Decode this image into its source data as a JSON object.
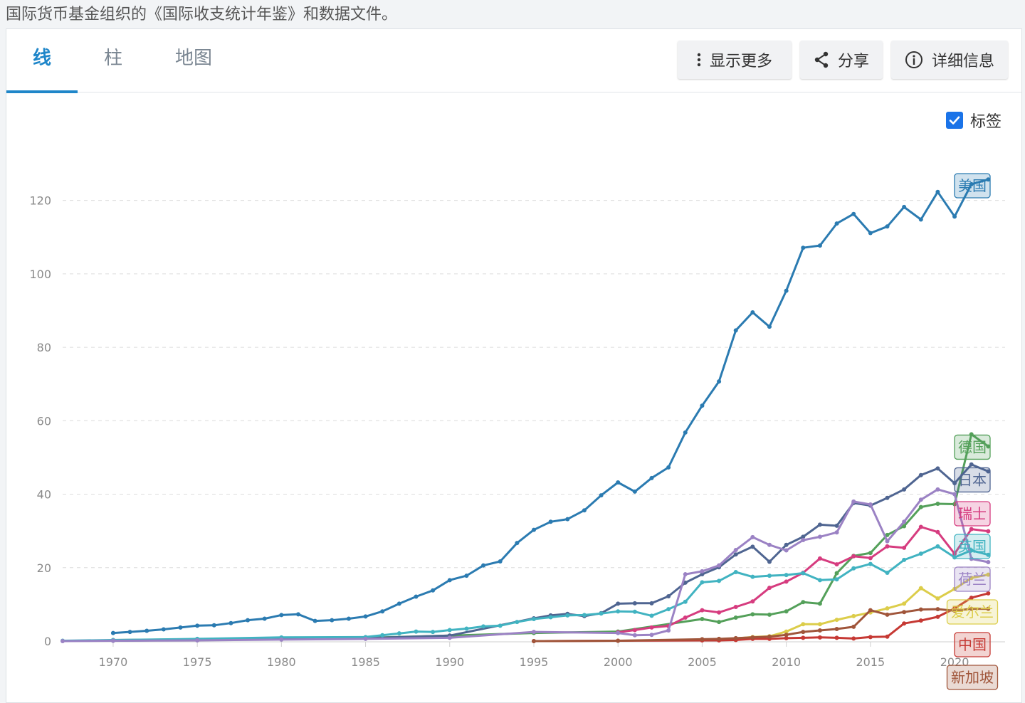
{
  "source_text": "国际货币基金组织的《国际收支统计年鉴》和数据文件。",
  "tabs": [
    {
      "label": "线",
      "active": true
    },
    {
      "label": "柱",
      "active": false
    },
    {
      "label": "地图",
      "active": false
    }
  ],
  "toolbar": {
    "more_label": "显示更多",
    "share_label": "分享",
    "details_label": "详细信息"
  },
  "labels_toggle": {
    "label": "标签",
    "checked": true
  },
  "chart_data": {
    "type": "line",
    "title": "",
    "xlabel": "",
    "ylabel": "",
    "xlim": [
      1967,
      2023
    ],
    "ylim": [
      0,
      130
    ],
    "x_ticks": [
      1970,
      1975,
      1980,
      1985,
      1990,
      1995,
      2000,
      2005,
      2010,
      2015,
      2020
    ],
    "y_ticks": [
      0,
      20,
      40,
      60,
      80,
      100,
      120
    ],
    "grid": true,
    "legend": "inline-right",
    "series": [
      {
        "name": "美国",
        "color": "#2b7bb1",
        "x": [
          1970,
          1971,
          1972,
          1973,
          1974,
          1975,
          1976,
          1977,
          1978,
          1979,
          1980,
          1981,
          1982,
          1983,
          1984,
          1985,
          1986,
          1987,
          1988,
          1989,
          1990,
          1991,
          1992,
          1993,
          1994,
          1995,
          1996,
          1997,
          1998,
          1999,
          2000,
          2001,
          2002,
          2003,
          2004,
          2005,
          2006,
          2007,
          2008,
          2009,
          2010,
          2011,
          2012,
          2013,
          2014,
          2015,
          2016,
          2017,
          2018,
          2019,
          2020,
          2021,
          2022
        ],
        "y": [
          2.2,
          2.5,
          2.8,
          3.2,
          3.7,
          4.2,
          4.3,
          4.9,
          5.7,
          6.1,
          7.1,
          7.3,
          5.5,
          5.7,
          6.1,
          6.7,
          8.1,
          10.2,
          12.1,
          13.8,
          16.6,
          17.8,
          20.6,
          21.7,
          26.7,
          30.3,
          32.5,
          33.2,
          35.6,
          39.7,
          43.2,
          40.7,
          44.4,
          47.3,
          56.8,
          64.1,
          70.7,
          84.6,
          89.5,
          85.6,
          95.4,
          107.1,
          107.7,
          113.7,
          116.3,
          111.1,
          112.9,
          118.2,
          114.8,
          122.3,
          115.6,
          124.4,
          125.7
        ]
      },
      {
        "name": "德国",
        "color": "#54a05a",
        "x": [
          1970,
          1975,
          1980,
          1985,
          1990,
          1995,
          2000,
          2005,
          2006,
          2007,
          2008,
          2009,
          2010,
          2011,
          2012,
          2013,
          2014,
          2015,
          2016,
          2017,
          2018,
          2019,
          2020,
          2021,
          2022
        ],
        "y": [
          0.3,
          0.5,
          0.8,
          0.9,
          1.5,
          2.2,
          2.6,
          6.0,
          5.2,
          6.4,
          7.3,
          7.2,
          8.1,
          10.6,
          10.2,
          18.5,
          23.2,
          24.0,
          28.9,
          31.3,
          36.5,
          37.4,
          37.3,
          56.3,
          53.0
        ]
      },
      {
        "name": "日本",
        "color": "#4f6591",
        "x": [
          1970,
          1975,
          1980,
          1985,
          1990,
          1995,
          1996,
          1997,
          1998,
          1999,
          2000,
          2001,
          2002,
          2003,
          2004,
          2005,
          2006,
          2007,
          2008,
          2009,
          2010,
          2011,
          2012,
          2013,
          2014,
          2015,
          2016,
          2017,
          2018,
          2019,
          2020,
          2021,
          2022
        ],
        "y": [
          0.1,
          0.3,
          0.6,
          0.8,
          1.5,
          6.2,
          7.0,
          7.4,
          6.8,
          7.6,
          10.2,
          10.3,
          10.3,
          12.2,
          15.9,
          18.2,
          20.1,
          23.6,
          25.7,
          21.6,
          26.2,
          28.4,
          31.7,
          31.4,
          37.6,
          36.9,
          39.0,
          41.3,
          45.2,
          47.0,
          43.0,
          48.1,
          46.2
        ]
      },
      {
        "name": "瑞士",
        "color": "#d63c7f",
        "x": [
          2000,
          2001,
          2002,
          2003,
          2004,
          2005,
          2006,
          2007,
          2008,
          2009,
          2010,
          2011,
          2012,
          2013,
          2014,
          2015,
          2016,
          2017,
          2018,
          2019,
          2020,
          2021,
          2022
        ],
        "y": [
          2.4,
          3.0,
          3.7,
          4.1,
          6.4,
          8.4,
          7.8,
          9.3,
          10.8,
          14.5,
          16.2,
          18.6,
          22.5,
          20.9,
          23.1,
          22.6,
          25.8,
          25.4,
          31.1,
          29.7,
          23.8,
          30.5,
          29.9
        ]
      },
      {
        "name": "英国",
        "color": "#41b3c1",
        "x": [
          1967,
          1970,
          1975,
          1980,
          1985,
          1986,
          1987,
          1988,
          1989,
          1990,
          1991,
          1992,
          1993,
          1994,
          1995,
          1996,
          1997,
          1998,
          1999,
          2000,
          2001,
          2002,
          2003,
          2004,
          2005,
          2006,
          2007,
          2008,
          2009,
          2010,
          2011,
          2012,
          2013,
          2014,
          2015,
          2016,
          2017,
          2018,
          2019,
          2020,
          2021,
          2022
        ],
        "y": [
          0.1,
          0.3,
          0.6,
          1.0,
          1.1,
          1.6,
          2.1,
          2.6,
          2.5,
          3.0,
          3.4,
          4.0,
          4.2,
          5.2,
          6.0,
          6.5,
          7.0,
          7.1,
          7.5,
          8.1,
          8.0,
          6.9,
          8.7,
          10.7,
          16.0,
          16.4,
          18.8,
          17.5,
          17.8,
          18.0,
          18.5,
          16.6,
          16.8,
          19.8,
          21.0,
          18.6,
          22.1,
          23.8,
          25.8,
          22.8,
          24.7,
          23.5
        ]
      },
      {
        "name": "荷兰",
        "color": "#9b82c4",
        "x": [
          1967,
          1970,
          1975,
          1980,
          1985,
          1990,
          1995,
          2000,
          2001,
          2002,
          2003,
          2004,
          2005,
          2006,
          2007,
          2008,
          2009,
          2010,
          2011,
          2012,
          2013,
          2014,
          2015,
          2016,
          2017,
          2018,
          2019,
          2020,
          2021,
          2022
        ],
        "y": [
          0.0,
          0.1,
          0.2,
          0.4,
          0.6,
          0.9,
          2.5,
          2.2,
          1.6,
          1.7,
          2.9,
          18.2,
          19.0,
          20.6,
          24.8,
          28.3,
          26.2,
          24.7,
          27.5,
          28.4,
          29.6,
          38.0,
          37.2,
          27.2,
          32.5,
          38.5,
          41.3,
          40.0,
          22.4,
          21.5
        ]
      },
      {
        "name": "爱尔兰",
        "color": "#dccd4a",
        "x": [
          2005,
          2006,
          2007,
          2008,
          2009,
          2010,
          2011,
          2012,
          2013,
          2014,
          2015,
          2016,
          2017,
          2018,
          2019,
          2020,
          2021,
          2022
        ],
        "y": [
          0.4,
          0.5,
          0.7,
          1.1,
          1.3,
          2.6,
          4.6,
          4.6,
          5.8,
          6.8,
          7.8,
          8.9,
          10.2,
          14.4,
          11.6,
          14.2,
          17.2,
          18.1
        ]
      },
      {
        "name": "中国",
        "color": "#c63934",
        "x": [
          1995,
          2000,
          2005,
          2006,
          2007,
          2008,
          2009,
          2010,
          2011,
          2012,
          2013,
          2014,
          2015,
          2016,
          2017,
          2018,
          2019,
          2020,
          2021,
          2022
        ],
        "y": [
          0.0,
          0.1,
          0.2,
          0.2,
          0.3,
          0.6,
          0.6,
          0.8,
          0.9,
          1.0,
          0.9,
          0.7,
          1.1,
          1.2,
          4.8,
          5.6,
          6.6,
          8.9,
          11.8,
          13.0
        ]
      },
      {
        "name": "新加坡",
        "color": "#a0553a",
        "x": [
          1995,
          2000,
          2005,
          2006,
          2007,
          2008,
          2009,
          2010,
          2011,
          2012,
          2013,
          2014,
          2015,
          2016,
          2017,
          2018,
          2019,
          2020,
          2021,
          2022
        ],
        "y": [
          0.0,
          0.1,
          0.5,
          0.6,
          0.8,
          1.0,
          1.2,
          1.7,
          2.5,
          2.9,
          3.3,
          3.9,
          8.4,
          7.2,
          7.9,
          8.6,
          8.7,
          8.3,
          8.8,
          8.8
        ]
      }
    ]
  }
}
